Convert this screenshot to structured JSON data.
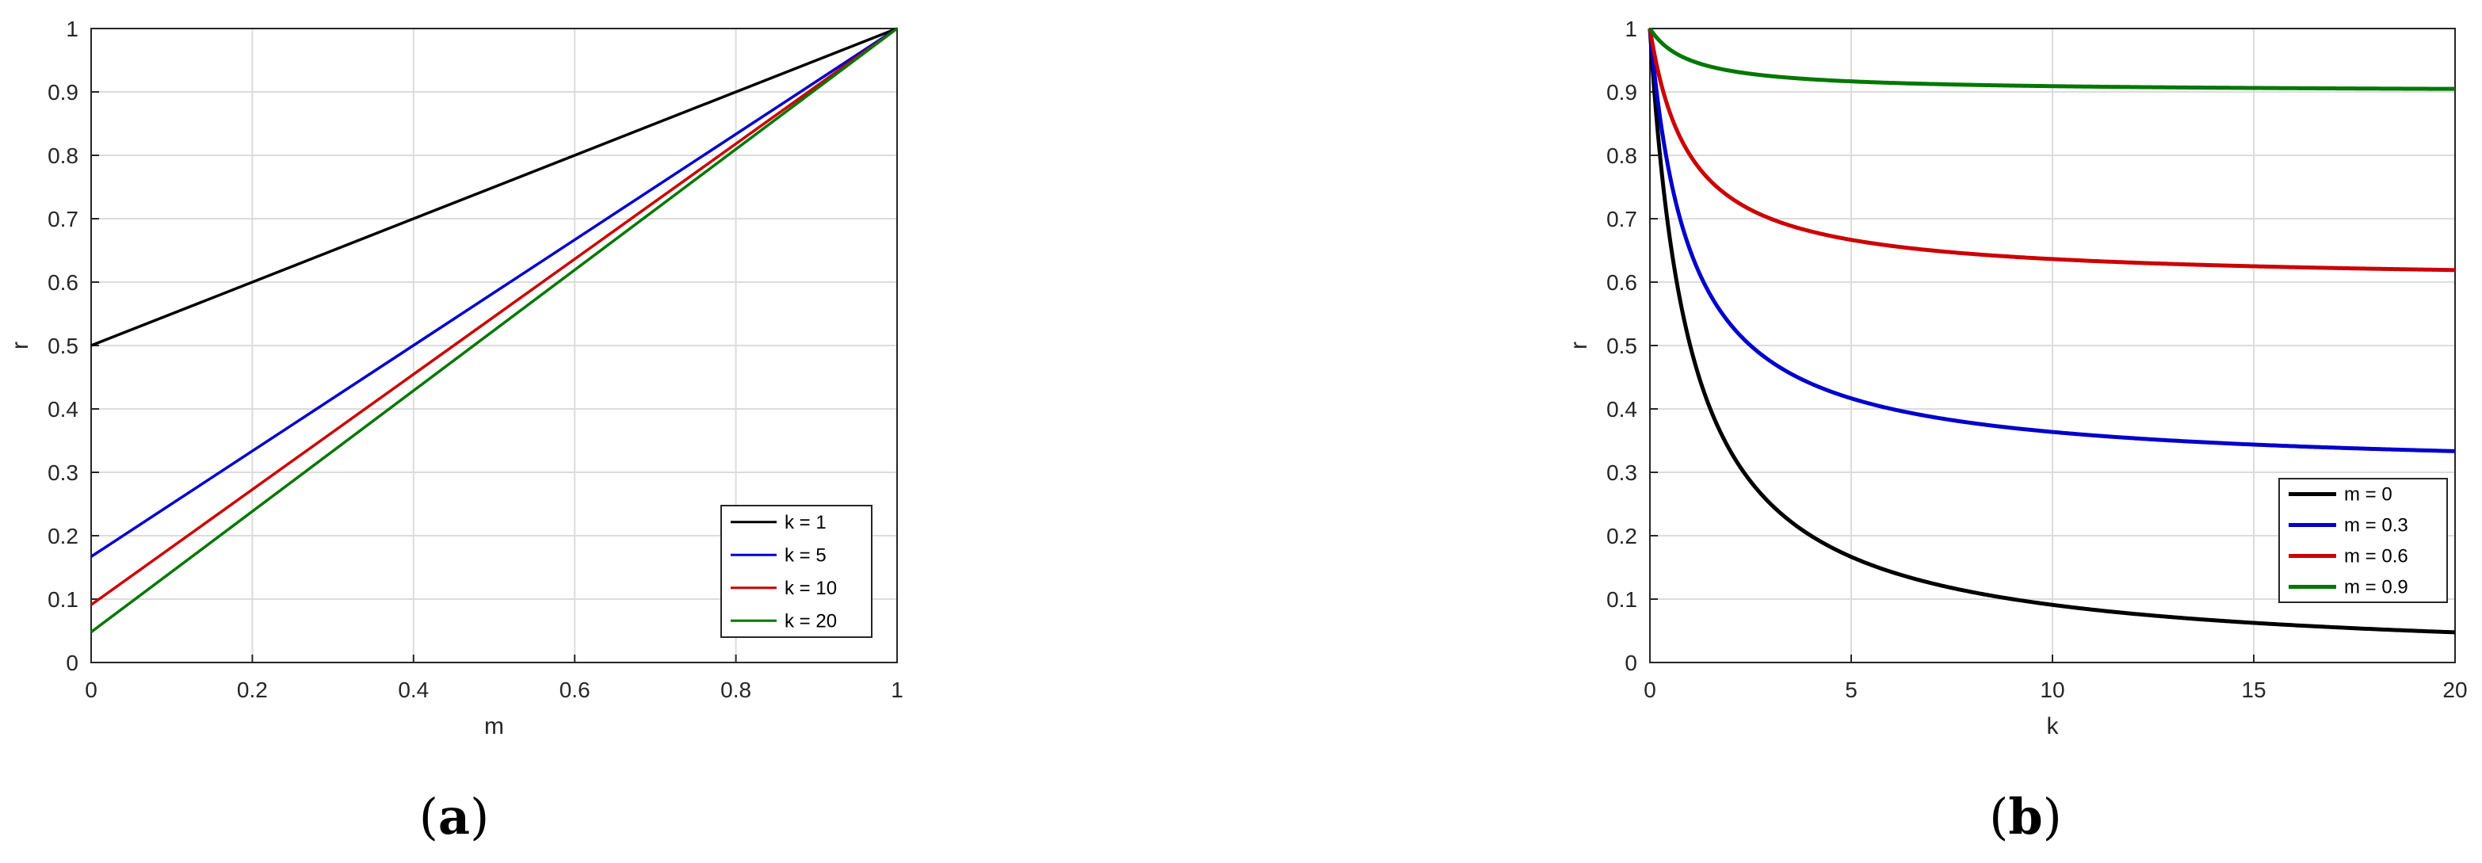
{
  "chart_data": [
    {
      "type": "line",
      "caption_letter": "a",
      "xlabel": "m",
      "ylabel": "r",
      "xlim": [
        0,
        1
      ],
      "ylim": [
        0,
        1
      ],
      "xticks": [
        "0",
        "0.2",
        "0.4",
        "0.6",
        "0.8",
        "1"
      ],
      "yticks": [
        "0",
        "0.1",
        "0.2",
        "0.3",
        "0.4",
        "0.5",
        "0.6",
        "0.7",
        "0.8",
        "0.9",
        "1"
      ],
      "grid": true,
      "legend_position": "bottom-right",
      "series": [
        {
          "name": "k = 1",
          "color": "#000000",
          "x": [
            0,
            1
          ],
          "y": [
            0.5,
            1
          ]
        },
        {
          "name": "k = 5",
          "color": "#0000cc",
          "x": [
            0,
            1
          ],
          "y": [
            0.167,
            1
          ]
        },
        {
          "name": "k = 10",
          "color": "#cc0000",
          "x": [
            0,
            1
          ],
          "y": [
            0.091,
            1
          ]
        },
        {
          "name": "k = 20",
          "color": "#007700",
          "x": [
            0,
            1
          ],
          "y": [
            0.048,
            1
          ]
        }
      ]
    },
    {
      "type": "line",
      "caption_letter": "b",
      "xlabel": "k",
      "ylabel": "r",
      "xlim": [
        0,
        20
      ],
      "ylim": [
        0,
        1
      ],
      "xticks": [
        "0",
        "5",
        "10",
        "15",
        "20"
      ],
      "yticks": [
        "0",
        "0.1",
        "0.2",
        "0.3",
        "0.4",
        "0.5",
        "0.6",
        "0.7",
        "0.8",
        "0.9",
        "1"
      ],
      "grid": true,
      "legend_position": "bottom-right",
      "series": [
        {
          "name": "m = 0",
          "color": "#000000",
          "x": [
            0,
            0.25,
            0.5,
            1,
            1.5,
            2,
            3,
            4,
            5,
            6,
            8,
            10,
            12,
            15,
            18,
            20
          ],
          "y": [
            1,
            0.8,
            0.667,
            0.5,
            0.4,
            0.333,
            0.25,
            0.2,
            0.167,
            0.143,
            0.111,
            0.091,
            0.077,
            0.0625,
            0.0526,
            0.0476
          ]
        },
        {
          "name": "m = 0.3",
          "color": "#0000cc",
          "x": [
            0,
            0.25,
            0.5,
            1,
            1.5,
            2,
            3,
            4,
            5,
            6,
            8,
            10,
            12,
            15,
            18,
            20
          ],
          "y": [
            1,
            0.86,
            0.767,
            0.65,
            0.58,
            0.533,
            0.475,
            0.44,
            0.417,
            0.4,
            0.378,
            0.364,
            0.354,
            0.344,
            0.337,
            0.333
          ]
        },
        {
          "name": "m = 0.6",
          "color": "#cc0000",
          "x": [
            0,
            0.25,
            0.5,
            1,
            1.5,
            2,
            3,
            4,
            5,
            6,
            8,
            10,
            12,
            15,
            18,
            20
          ],
          "y": [
            1,
            0.92,
            0.867,
            0.8,
            0.76,
            0.733,
            0.7,
            0.68,
            0.667,
            0.657,
            0.644,
            0.636,
            0.631,
            0.625,
            0.621,
            0.619
          ]
        },
        {
          "name": "m = 0.9",
          "color": "#007700",
          "x": [
            0,
            0.25,
            0.5,
            1,
            1.5,
            2,
            3,
            4,
            5,
            6,
            8,
            10,
            12,
            15,
            18,
            20
          ],
          "y": [
            1,
            0.98,
            0.967,
            0.95,
            0.94,
            0.933,
            0.925,
            0.92,
            0.917,
            0.914,
            0.911,
            0.909,
            0.908,
            0.906,
            0.905,
            0.905
          ]
        }
      ]
    }
  ]
}
